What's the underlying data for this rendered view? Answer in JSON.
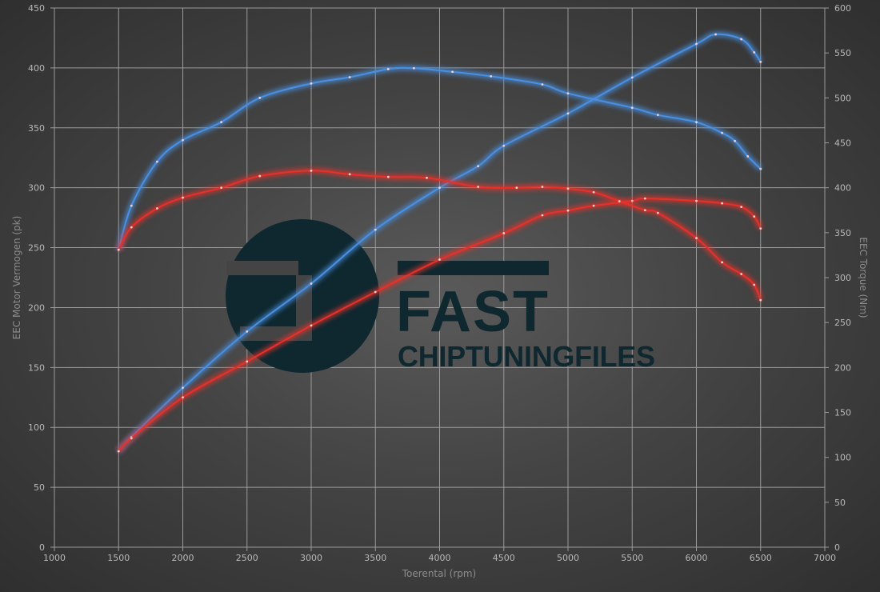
{
  "chart_data": {
    "type": "line",
    "xlabel": "Toerental (rpm)",
    "ylabel": "EEC Motor Vermogen (pk)",
    "y2label": "EEC Torque (Nm)",
    "xlim": [
      1000,
      7000
    ],
    "ylim": [
      0,
      450
    ],
    "y2lim": [
      0,
      600
    ],
    "xticks": [
      1000,
      1500,
      2000,
      2500,
      3000,
      3500,
      4000,
      4500,
      5000,
      5500,
      6000,
      6500,
      7000
    ],
    "yticks": [
      0,
      50,
      100,
      150,
      200,
      250,
      300,
      350,
      400,
      450
    ],
    "y2ticks": [
      0,
      50,
      100,
      150,
      200,
      250,
      300,
      350,
      400,
      450,
      500,
      550,
      600
    ],
    "grid": true,
    "logo": "FAST CHIPTUNINGFILES",
    "series": [
      {
        "axis": "left",
        "color": "#4a90e2",
        "x": [
          1500,
          1600,
          2000,
          2500,
          3000,
          3500,
          4000,
          4300,
          4500,
          5000,
          5500,
          6000,
          6150,
          6350,
          6450,
          6500
        ],
        "values": [
          80,
          92,
          133,
          180,
          220,
          265,
          300,
          318,
          335,
          362,
          392,
          420,
          428,
          424,
          413,
          405
        ]
      },
      {
        "axis": "left",
        "color": "#e8302a",
        "x": [
          1500,
          1600,
          2000,
          2500,
          3000,
          3500,
          4000,
          4500,
          4800,
          5000,
          5200,
          5500,
          5600,
          6000,
          6200,
          6350,
          6450,
          6500
        ],
        "values": [
          80,
          91,
          125,
          155,
          185,
          213,
          240,
          262,
          277,
          281,
          285,
          289,
          291,
          289,
          287,
          284,
          276,
          266
        ]
      },
      {
        "axis": "right",
        "color": "#4a90e2",
        "x": [
          1500,
          1600,
          1800,
          2000,
          2300,
          2600,
          3000,
          3300,
          3600,
          3800,
          4100,
          4400,
          4800,
          5000,
          5500,
          5700,
          6000,
          6200,
          6300,
          6400,
          6500
        ],
        "values": [
          331,
          380,
          429,
          453,
          473,
          500,
          516,
          523,
          532,
          533,
          529,
          524,
          515,
          505,
          489,
          481,
          473,
          461,
          452,
          435,
          421
        ]
      },
      {
        "axis": "right",
        "color": "#e8302a",
        "x": [
          1500,
          1600,
          1800,
          2000,
          2300,
          2600,
          3000,
          3300,
          3600,
          3900,
          4300,
          4600,
          4800,
          5000,
          5200,
          5400,
          5600,
          5700,
          6000,
          6200,
          6350,
          6450,
          6500
        ],
        "values": [
          331,
          356,
          377,
          389,
          400,
          413,
          419,
          415,
          412,
          411,
          401,
          400,
          401,
          399,
          395,
          385,
          375,
          372,
          344,
          317,
          304,
          292,
          275
        ]
      }
    ]
  }
}
